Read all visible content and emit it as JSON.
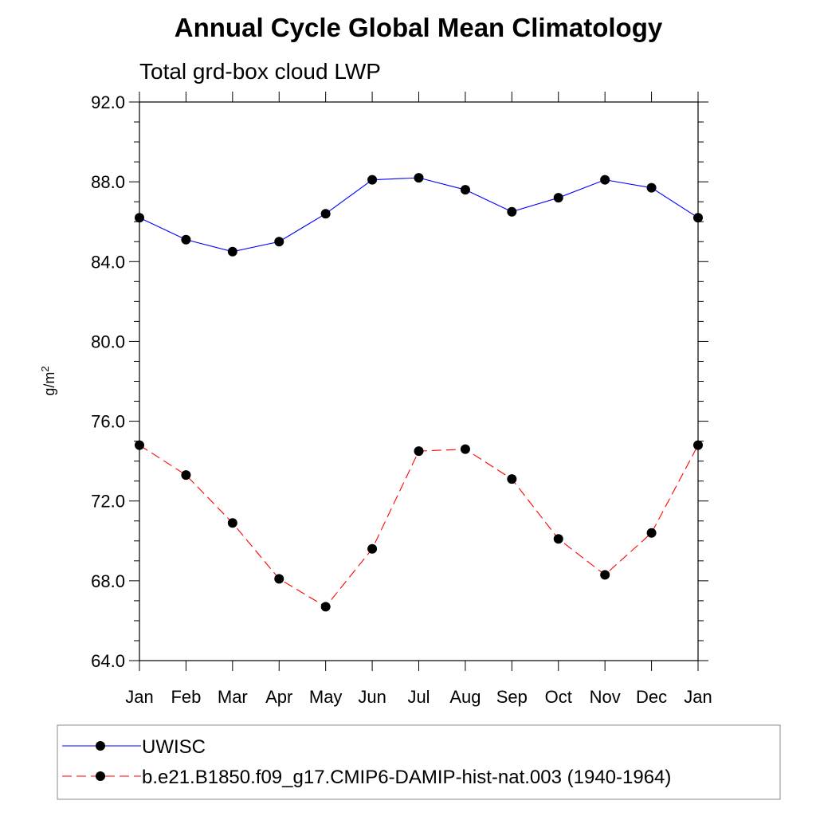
{
  "chart_data": {
    "type": "line",
    "title": "Annual Cycle Global Mean Climatology",
    "subtitle": "Total grd-box cloud LWP",
    "ylabel": "g/m",
    "ylabel_sup": "2",
    "xlabel": "",
    "categories": [
      "Jan",
      "Feb",
      "Mar",
      "Apr",
      "May",
      "Jun",
      "Jul",
      "Aug",
      "Sep",
      "Oct",
      "Nov",
      "Dec",
      "Jan"
    ],
    "ylim": [
      64.0,
      92.0
    ],
    "yticks": [
      "64.0",
      "68.0",
      "72.0",
      "76.0",
      "80.0",
      "84.0",
      "88.0",
      "92.0"
    ],
    "grid": false,
    "legend_position": "bottom",
    "series": [
      {
        "name": "UWISC",
        "color": "#0000ff",
        "line_style": "solid",
        "marker": "filled-circle",
        "values": [
          86.2,
          85.1,
          84.5,
          85.0,
          86.4,
          88.1,
          88.2,
          87.6,
          86.5,
          87.2,
          88.1,
          87.7,
          86.2
        ]
      },
      {
        "name": "b.e21.B1850.f09_g17.CMIP6-DAMIP-hist-nat.003 (1940-1964)",
        "color": "#ff0000",
        "line_style": "dashed",
        "marker": "filled-circle",
        "values": [
          74.8,
          73.3,
          70.9,
          68.1,
          66.7,
          69.6,
          74.5,
          74.6,
          73.1,
          70.1,
          68.3,
          70.4,
          74.8
        ]
      }
    ]
  }
}
